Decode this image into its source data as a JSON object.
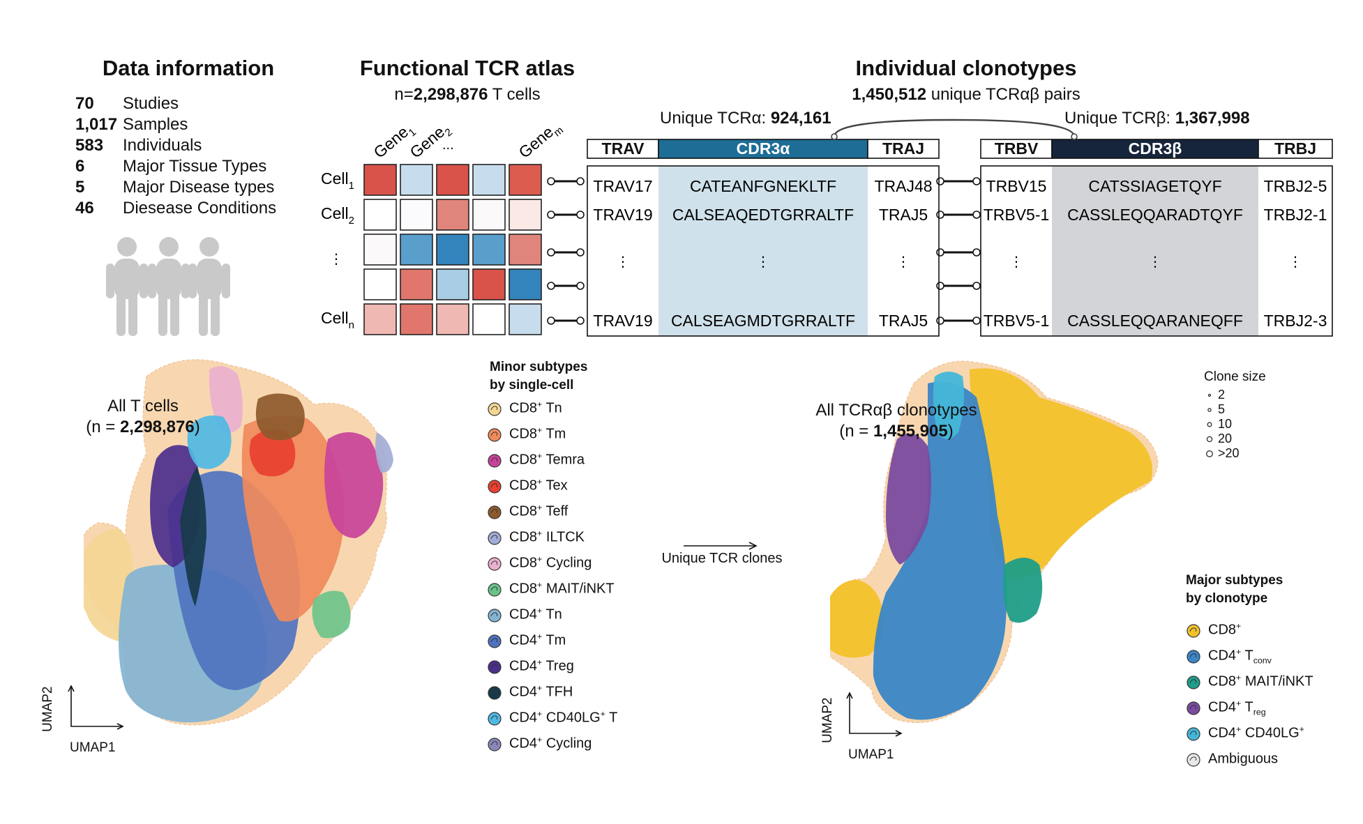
{
  "titles": {
    "data_info": "Data information",
    "atlas": "Functional TCR atlas",
    "clonotypes": "Individual clonotypes"
  },
  "data_info": {
    "rows": [
      {
        "value": "70",
        "label": "Studies"
      },
      {
        "value": "1,017",
        "label": "Samples"
      },
      {
        "value": "583",
        "label": "Individuals"
      },
      {
        "value": "6",
        "label": "Major Tissue Types"
      },
      {
        "value": "5",
        "label": "Major Disease types"
      },
      {
        "value": "46",
        "label": "Diesease Conditions"
      }
    ]
  },
  "atlas": {
    "count_prefix": "n=",
    "count_value": "2,298,876",
    "count_suffix": " T cells",
    "gene_labels": [
      {
        "main": "Gene",
        "sub": "1"
      },
      {
        "main": "Gene",
        "sub": "2"
      },
      {
        "main": "...",
        "sub": ""
      },
      {
        "main": "",
        "sub": ""
      },
      {
        "main": "Gene",
        "sub": "m"
      }
    ],
    "cell_labels": [
      {
        "main": "Cell",
        "sub": "1"
      },
      {
        "main": "Cell",
        "sub": "2"
      },
      {
        "main": "⋮",
        "sub": ""
      },
      {
        "main": "",
        "sub": ""
      },
      {
        "main": "Cell",
        "sub": "n"
      }
    ],
    "heatmap": [
      [
        "#d9534a",
        "#c7dded",
        "#d9534a",
        "#c7dded",
        "#dc5d4f"
      ],
      [
        "#ffffff",
        "#fbfafc",
        "#e0857c",
        "#fcf9fb",
        "#fbe9e6"
      ],
      [
        "#fcf9fb",
        "#5a9fcc",
        "#3384bd",
        "#5a9fcc",
        "#e0857c"
      ],
      [
        "#ffffff",
        "#e0766c",
        "#a9cde5",
        "#d9534a",
        "#3384bd"
      ],
      [
        "#f0b8b2",
        "#e0766c",
        "#f0b8b2",
        "#ffffff",
        "#c7dded"
      ]
    ]
  },
  "clonotypes": {
    "pairs_value": "1,450,512",
    "pairs_suffix": " unique TCRαβ pairs",
    "alpha_label": "Unique TCRα: ",
    "alpha_value": "924,161",
    "beta_label": "Unique TCRβ: ",
    "beta_value": "1,367,998",
    "alpha_headers": [
      "TRAV",
      "CDR3α",
      "TRAJ"
    ],
    "beta_headers": [
      "TRBV",
      "CDR3β",
      "TRBJ"
    ],
    "alpha_rows": [
      [
        "TRAV17",
        "CATEANFGNEKLTF",
        "TRAJ48"
      ],
      [
        "TRAV19",
        "CALSEAQEDTGRRALTF",
        "TRAJ5"
      ],
      [
        "⋮",
        "⋮",
        "⋮"
      ],
      [
        "",
        "",
        ""
      ],
      [
        "TRAV19",
        "CALSEAGMDTGRRALTF",
        "TRAJ5"
      ]
    ],
    "beta_rows": [
      [
        "TRBV15",
        "CATSSIAGETQYF",
        "TRBJ2-5"
      ],
      [
        "TRBV5-1",
        "CASSLEQQARADTQYF",
        "TRBJ2-1"
      ],
      [
        "⋮",
        "⋮",
        "⋮"
      ],
      [
        "",
        "",
        ""
      ],
      [
        "TRBV5-1",
        "CASSLEQQARANEQFF",
        "TRBJ2-3"
      ]
    ],
    "colors": {
      "alpha_header": "#1e6d96",
      "alpha_body": "#cfe1ea",
      "beta_header": "#16253b",
      "beta_body": "#d2d4d8"
    }
  },
  "umap_left": {
    "label": "All T cells",
    "count_prefix": "(n = ",
    "count_value": "2,298,876",
    "count_suffix": ")",
    "axis_x": "UMAP1",
    "axis_y": "UMAP2"
  },
  "legend_minor": {
    "title_line1": "Minor subtypes",
    "title_line2": "by single-cell",
    "items": [
      {
        "base": "CD8",
        "sup": "+",
        "rest": " Tn",
        "sub": "",
        "color": "#f4d694"
      },
      {
        "base": "CD8",
        "sup": "+",
        "rest": " Tm",
        "sub": "",
        "color": "#f08a5c"
      },
      {
        "base": "CD8",
        "sup": "+",
        "rest": " Temra",
        "sub": "",
        "color": "#c8439a"
      },
      {
        "base": "CD8",
        "sup": "+",
        "rest": " Tex",
        "sub": "",
        "color": "#e8412f"
      },
      {
        "base": "CD8",
        "sup": "+",
        "rest": " Teff",
        "sub": "",
        "color": "#8d5a2b"
      },
      {
        "base": "CD8",
        "sup": "+",
        "rest": " ILTCK",
        "sub": "",
        "color": "#a3acd6"
      },
      {
        "base": "CD8",
        "sup": "+",
        "rest": " Cycling",
        "sub": "",
        "color": "#eab0cf"
      },
      {
        "base": "CD8",
        "sup": "+",
        "rest": " MAIT/iNKT",
        "sub": "",
        "color": "#6cc38a"
      },
      {
        "base": "CD4",
        "sup": "+",
        "rest": " Tn",
        "sub": "",
        "color": "#83b4d3"
      },
      {
        "base": "CD4",
        "sup": "+",
        "rest": " Tm",
        "sub": "",
        "color": "#4f73bf"
      },
      {
        "base": "CD4",
        "sup": "+",
        "rest": " Treg",
        "sub": "",
        "color": "#4b2f8c"
      },
      {
        "base": "CD4",
        "sup": "+",
        "rest": " TFH",
        "sub": "",
        "color": "#173a4a"
      },
      {
        "base": "CD4",
        "sup": "+",
        "rest": " CD40LG",
        "sup2": "+",
        "rest2": " T",
        "sub": "",
        "color": "#4fb9e3"
      },
      {
        "base": "CD4",
        "sup": "+",
        "rest": " Cycling",
        "sub": "",
        "color": "#8a87b8"
      }
    ]
  },
  "arrow": {
    "label": "Unique TCR clones"
  },
  "umap_right": {
    "label": "All TCRαβ clonotypes",
    "count_prefix": "(n = ",
    "count_value": "1,455,905",
    "count_suffix": ")",
    "axis_x": "UMAP1",
    "axis_y": "UMAP2"
  },
  "clone_size": {
    "title": "Clone size",
    "items": [
      "2",
      "5",
      "10",
      "20",
      ">20"
    ]
  },
  "legend_major": {
    "title_line1": "Major subtypes",
    "title_line2": "by clonotype",
    "items": [
      {
        "base": "CD8",
        "sup": "+",
        "rest": "",
        "sub": "",
        "color": "#f2c22b"
      },
      {
        "base": "CD4",
        "sup": "+",
        "rest": " T",
        "sub": "conv",
        "color": "#3a86c6"
      },
      {
        "base": "CD8",
        "sup": "+",
        "rest": " MAIT/iNKT",
        "sub": "",
        "color": "#1f9e88"
      },
      {
        "base": "CD4",
        "sup": "+",
        "rest": " T",
        "sub": "reg",
        "color": "#7a4b9e"
      },
      {
        "base": "CD4",
        "sup": "+",
        "rest": " CD40LG",
        "sup2": "+",
        "sub": "",
        "color": "#44b7d8"
      },
      {
        "base": "Ambiguous",
        "sup": "",
        "rest": "",
        "sub": "",
        "color": "#e8e8e8"
      }
    ]
  }
}
